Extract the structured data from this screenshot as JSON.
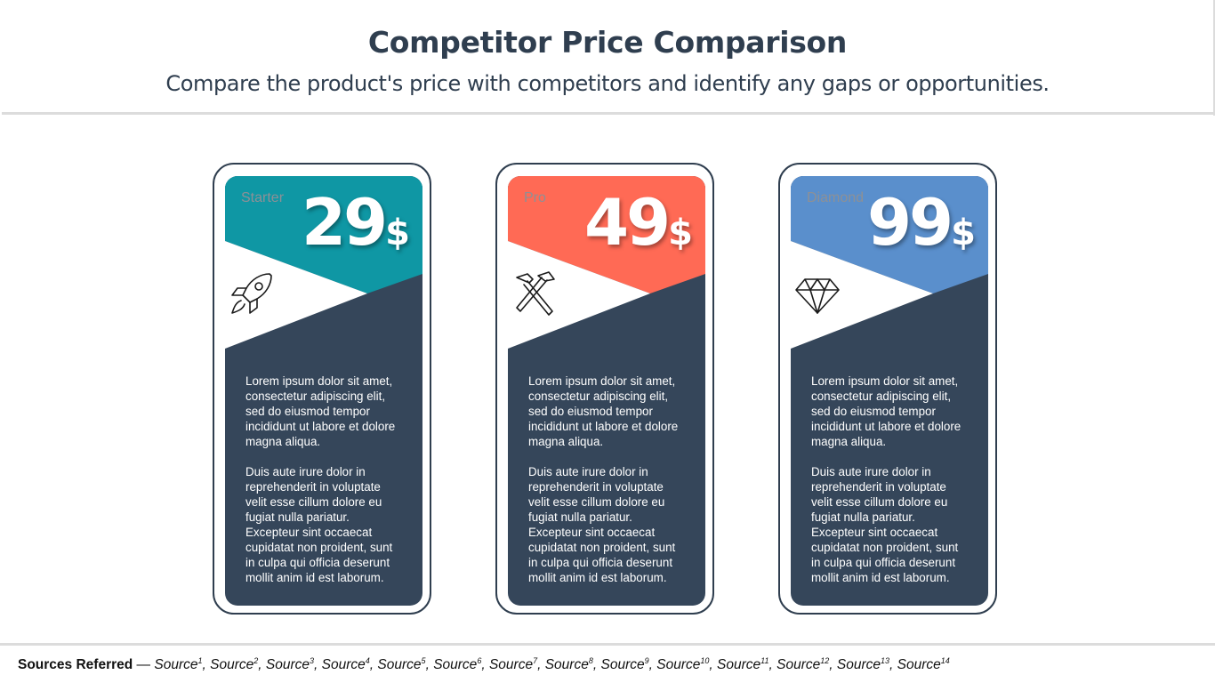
{
  "header": {
    "title": "Competitor Price Comparison",
    "subtitle": "Compare the product's price with competitors and identify any gaps or opportunities."
  },
  "cards": [
    {
      "tier": "Starter",
      "price": "29",
      "currency": "$",
      "icon": "rocket-icon",
      "accent": "#0f97a4",
      "paragraphs": [
        "Lorem ipsum dolor sit amet, consectetur adipiscing elit, sed do eiusmod tempor incididunt ut labore et dolore magna aliqua.",
        "Duis aute irure dolor in reprehenderit in voluptate velit esse cillum dolore eu fugiat nulla pariatur. Excepteur sint occaecat cupidatat non proident, sunt in culpa qui officia deserunt mollit anim id est laborum."
      ]
    },
    {
      "tier": "Pro",
      "price": "49",
      "currency": "$",
      "icon": "hammers-icon",
      "accent": "#ff6a55",
      "paragraphs": [
        "Lorem ipsum dolor sit amet, consectetur adipiscing elit, sed do eiusmod tempor incididunt ut labore et dolore magna aliqua.",
        "Duis aute irure dolor in reprehenderit in voluptate velit esse cillum dolore eu fugiat nulla pariatur. Excepteur sint occaecat cupidatat non proident, sunt in culpa qui officia deserunt mollit anim id est laborum."
      ]
    },
    {
      "tier": "Diamond",
      "price": "99",
      "currency": "$",
      "icon": "diamond-icon",
      "accent": "#5a8fcc",
      "paragraphs": [
        "Lorem ipsum dolor sit amet, consectetur adipiscing elit, sed do eiusmod tempor incididunt ut labore et dolore magna aliqua.",
        "Duis aute irure dolor in reprehenderit in voluptate velit esse cillum dolore eu fugiat nulla pariatur. Excepteur sint occaecat cupidatat non proident, sunt in culpa qui officia deserunt mollit anim id est laborum."
      ]
    }
  ],
  "footer": {
    "label": "Sources Referred",
    "dash": " — ",
    "sources": [
      "Source",
      "Source",
      "Source",
      "Source",
      "Source",
      "Source",
      "Source",
      "Source",
      "Source",
      "Source",
      "Source",
      "Source",
      "Source",
      "Source"
    ],
    "superscripts": [
      "1",
      "2",
      "3",
      "4",
      "5",
      "6",
      "7",
      "8",
      "9",
      "10",
      "11",
      "12",
      "13",
      "14"
    ]
  },
  "colors": {
    "dark": "#35465a",
    "title": "#2f3e4f",
    "rule": "#dcdcdc"
  }
}
